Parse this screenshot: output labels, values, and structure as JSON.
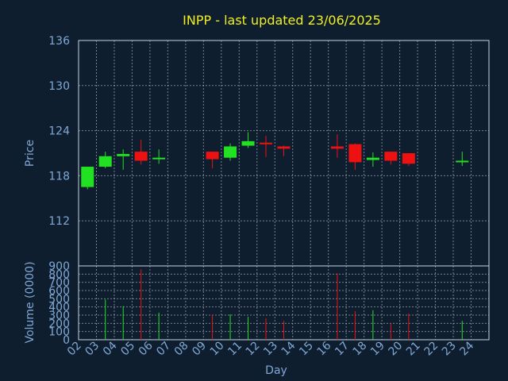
{
  "chart_data": {
    "type": "candlestick",
    "title": "INPP - last updated 23/06/2025",
    "price_axis": {
      "label": "Price",
      "ylim": [
        106,
        136
      ],
      "ticks": [
        112,
        118,
        124,
        130,
        136
      ]
    },
    "volume_axis": {
      "label": "Volume (0000)",
      "ylim": [
        0,
        900
      ],
      "ticks": [
        0,
        100,
        200,
        300,
        400,
        500,
        600,
        700,
        800,
        900
      ]
    },
    "xlabel": "Day",
    "x_ticks": [
      "02",
      "03",
      "04",
      "05",
      "06",
      "07",
      "08",
      "09",
      "10",
      "11",
      "12",
      "13",
      "14",
      "15",
      "16",
      "17",
      "18",
      "19",
      "20",
      "21",
      "22",
      "23",
      "24"
    ],
    "grid": true,
    "up_color": "#22e022",
    "down_color": "#ee1111",
    "candles": [
      {
        "day": "02",
        "open": 116.5,
        "close": 119.2,
        "high": 119.2,
        "low": 116.2,
        "volume": 0
      },
      {
        "day": "03",
        "open": 119.2,
        "close": 120.6,
        "high": 121.2,
        "low": 119.0,
        "volume": 490
      },
      {
        "day": "04",
        "open": 120.6,
        "close": 120.9,
        "high": 121.5,
        "low": 118.8,
        "volume": 410
      },
      {
        "day": "05",
        "open": 121.2,
        "close": 120.0,
        "high": 122.8,
        "low": 119.5,
        "volume": 860
      },
      {
        "day": "06",
        "open": 120.2,
        "close": 120.4,
        "high": 121.5,
        "low": 119.6,
        "volume": 330
      },
      {
        "day": "09",
        "open": 121.2,
        "close": 120.2,
        "high": 121.2,
        "low": 119.0,
        "volume": 300
      },
      {
        "day": "10",
        "open": 120.4,
        "close": 121.9,
        "high": 122.3,
        "low": 120.0,
        "volume": 310
      },
      {
        "day": "11",
        "open": 122.0,
        "close": 122.6,
        "high": 123.8,
        "low": 121.7,
        "volume": 280
      },
      {
        "day": "12",
        "open": 122.4,
        "close": 122.2,
        "high": 123.3,
        "low": 120.5,
        "volume": 260
      },
      {
        "day": "13",
        "open": 121.9,
        "close": 121.6,
        "high": 122.0,
        "low": 120.6,
        "volume": 230
      },
      {
        "day": "16",
        "open": 121.9,
        "close": 121.6,
        "high": 123.5,
        "low": 120.4,
        "volume": 810
      },
      {
        "day": "17",
        "open": 122.2,
        "close": 119.8,
        "high": 122.3,
        "low": 118.8,
        "volume": 350
      },
      {
        "day": "18",
        "open": 120.1,
        "close": 120.4,
        "high": 121.1,
        "low": 119.2,
        "volume": 360
      },
      {
        "day": "19",
        "open": 121.2,
        "close": 120.0,
        "high": 121.2,
        "low": 119.5,
        "volume": 200
      },
      {
        "day": "20",
        "open": 121.0,
        "close": 119.6,
        "high": 121.0,
        "low": 119.3,
        "volume": 320
      },
      {
        "day": "23",
        "open": 119.8,
        "close": 120.0,
        "high": 121.2,
        "low": 119.3,
        "volume": 230
      }
    ]
  }
}
